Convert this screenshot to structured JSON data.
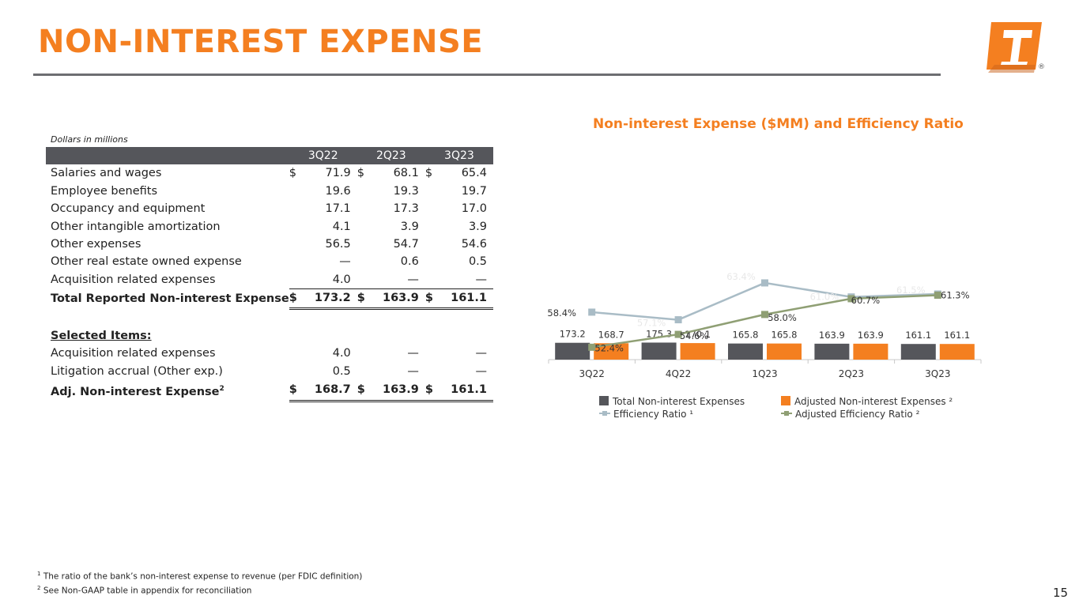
{
  "title": "NON-INTEREST EXPENSE",
  "units_note": "Dollars in millions",
  "table": {
    "headers": [
      "3Q22",
      "2Q23",
      "3Q23"
    ],
    "rows": [
      {
        "label": "Salaries and wages",
        "values": [
          "$",
          "71.9",
          "$",
          "68.1",
          "$",
          "65.4"
        ]
      },
      {
        "label": "Employee benefits",
        "values": [
          "",
          "19.6",
          "",
          "19.3",
          "",
          "19.7"
        ]
      },
      {
        "label": "Occupancy and equipment",
        "values": [
          "",
          "17.1",
          "",
          "17.3",
          "",
          "17.0"
        ]
      },
      {
        "label": "Other intangible amortization",
        "values": [
          "",
          "4.1",
          "",
          "3.9",
          "",
          "3.9"
        ]
      },
      {
        "label": "Other expenses",
        "values": [
          "",
          "56.5",
          "",
          "54.7",
          "",
          "54.6"
        ]
      },
      {
        "label": "Other real estate owned expense",
        "values": [
          "",
          "—",
          "",
          "0.6",
          "",
          "0.5"
        ]
      },
      {
        "label": "Acquisition related expenses",
        "values": [
          "",
          "4.0",
          "",
          "—",
          "",
          "—"
        ]
      },
      {
        "label": "Total Reported Non-interest Expense",
        "values": [
          "$",
          "173.2",
          "$",
          "163.9",
          "$",
          "161.1"
        ]
      }
    ],
    "selected_heading": "Selected Items:",
    "selected_rows": [
      {
        "label": "Acquisition related expenses",
        "values": [
          "",
          "4.0",
          "",
          "—",
          "",
          "—"
        ]
      },
      {
        "label": "Litigation accrual (Other exp.)",
        "values": [
          "",
          "0.5",
          "",
          "—",
          "",
          "—"
        ]
      }
    ],
    "adjusted_row": {
      "label": "Adj. Non-interest Expense",
      "sup": "2",
      "values": [
        "$",
        "168.7",
        "$",
        "163.9",
        "$",
        "161.1"
      ]
    }
  },
  "chart_title": "Non-interest Expense ($MM) and Efficiency Ratio",
  "chart_data": {
    "type": "bar",
    "categories": [
      "3Q22",
      "4Q22",
      "1Q23",
      "2Q23",
      "3Q23"
    ],
    "series": [
      {
        "name": "Total Non-interest Expenses",
        "kind": "bar",
        "color": "#55565b",
        "values": [
          173.2,
          175.3,
          165.8,
          163.9,
          161.1
        ],
        "labels": [
          "173.2",
          "175.3",
          "165.8",
          "163.9",
          "161.1"
        ]
      },
      {
        "name": "Adjusted Non-interest Expenses ²",
        "kind": "bar",
        "color": "#f47f20",
        "values": [
          168.7,
          170.1,
          165.8,
          163.9,
          161.1
        ],
        "labels": [
          "168.7",
          "170.1",
          "165.8",
          "163.9",
          "161.1"
        ]
      },
      {
        "name": "Efficiency Ratio ¹",
        "kind": "line",
        "color": "#a9bcc6",
        "values": [
          58.4,
          57.1,
          63.4,
          61.0,
          61.5
        ],
        "labels": [
          "58.4%",
          "57.1%",
          "63.4%",
          "61.0%",
          "61.5%"
        ]
      },
      {
        "name": "Adjusted Efficiency Ratio ²",
        "kind": "line",
        "color": "#8f9f74",
        "values": [
          52.4,
          54.6,
          58.0,
          60.7,
          61.3
        ],
        "labels": [
          "52.4%",
          "54.6%",
          "58.0%",
          "60.7%",
          "61.3%"
        ]
      }
    ],
    "legend_position": "bottom"
  },
  "footnotes": [
    {
      "mark": "1",
      "text": "The ratio of the bank’s non-interest expense to revenue (per FDIC definition)"
    },
    {
      "mark": "2",
      "text": "See Non-GAAP table in appendix for reconciliation"
    }
  ],
  "page_number": "15",
  "logo": {
    "icon": "bank-logo-icon",
    "registered_mark": "®",
    "color": "#f47f20"
  }
}
